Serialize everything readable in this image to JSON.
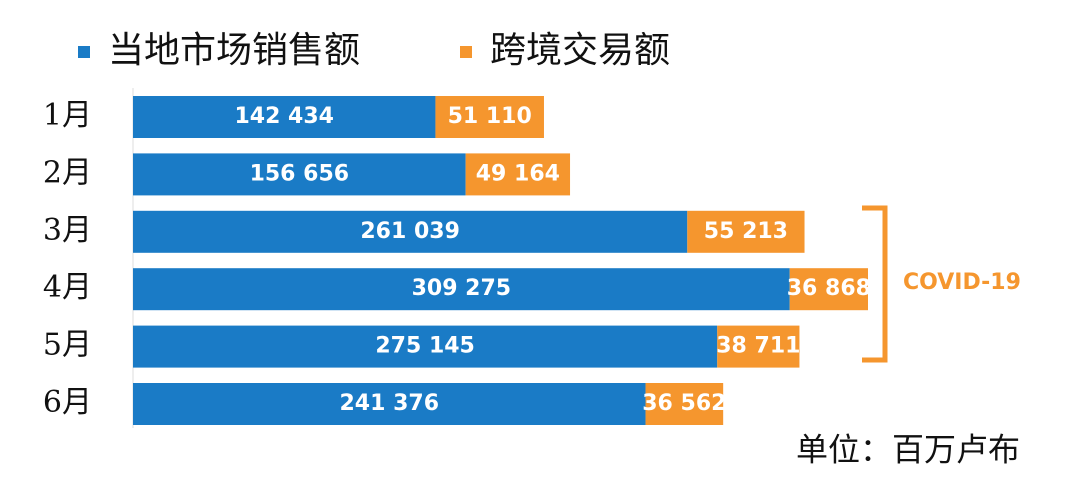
{
  "chart_data": {
    "type": "bar",
    "orientation": "horizontal",
    "stacked": true,
    "categories": [
      "1月",
      "2月",
      "3月",
      "4月",
      "5月",
      "6月"
    ],
    "series": [
      {
        "name": "当地市场销售额",
        "color": "#1a7bc6",
        "values": [
          142434,
          156656,
          261039,
          309275,
          275145,
          241376
        ],
        "value_labels": [
          "142 434",
          "156 656",
          "261 039",
          "309 275",
          "275 145",
          "241 376"
        ]
      },
      {
        "name": "跨境交易额",
        "color": "#f5962e",
        "values": [
          51110,
          49164,
          55213,
          36868,
          38711,
          36562
        ],
        "value_labels": [
          "51 110",
          "49 164",
          "55 213",
          "36 868",
          "38 711",
          "36 562"
        ]
      }
    ],
    "annotation": "COVID-19",
    "unit_note": "单位：百万卢布"
  }
}
